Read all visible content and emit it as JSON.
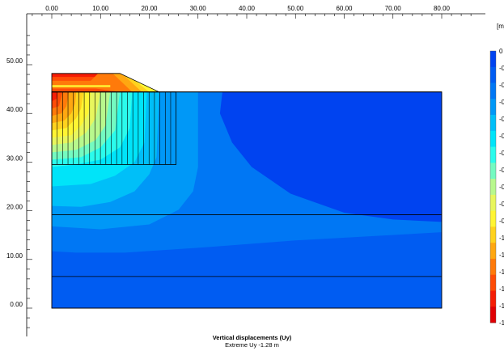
{
  "chart_data": {
    "type": "heatmap",
    "title": "Vertical displacements (Uy)",
    "subtitle": "Extreme Uy -1.28 m",
    "legend_unit": "[m]",
    "legend_position": "right",
    "xlim": [
      0,
      80
    ],
    "ylim": [
      -6,
      58
    ],
    "x_ticks": [
      0,
      10,
      20,
      30,
      40,
      50,
      60,
      70,
      80
    ],
    "x_tick_labels": [
      "0.00",
      "10.00",
      "20.00",
      "30.00",
      "40.00",
      "50.00",
      "60.00",
      "70.00",
      "80.00"
    ],
    "y_ticks": [
      0,
      10,
      20,
      30,
      40,
      50
    ],
    "y_tick_labels": [
      "0.00",
      "10.00",
      "20.00",
      "30.00",
      "40.00",
      "50.00"
    ],
    "legend_labels": [
      "0",
      "-0",
      "-0",
      "-0",
      "-0",
      "-0",
      "-0",
      "-0",
      "-0",
      "-0",
      "-0",
      "-1",
      "-1",
      "-1",
      "-1",
      "-1",
      "-1"
    ],
    "color_scale": [
      "#0043f0",
      "#005cf2",
      "#0077f4",
      "#0098f7",
      "#00bff8",
      "#00e4f9",
      "#2bfbec",
      "#74fac1",
      "#b8f88d",
      "#e8f65d",
      "#fff533",
      "#ffd21e",
      "#ffa711",
      "#ff7a0a",
      "#ff4c06",
      "#f51d05",
      "#e00004"
    ],
    "soil_layer_boundaries_y": [
      0,
      6.5,
      19.2,
      44.4
    ],
    "model_extent": {
      "x": [
        0,
        80
      ],
      "y": [
        0,
        44.4
      ]
    },
    "embankment_polygon": [
      [
        0,
        48.2
      ],
      [
        14,
        48.2
      ],
      [
        22,
        44.4
      ],
      [
        0,
        44.4
      ]
    ],
    "improved_zone": {
      "x": [
        0,
        25.5
      ],
      "y": [
        29.5,
        44.4
      ],
      "columns": 23
    },
    "contours": [
      {
        "level": 1,
        "points": [
          [
            0,
            0
          ],
          [
            80,
            0
          ],
          [
            80,
            44.4
          ],
          [
            0,
            44.4
          ]
        ]
      },
      {
        "level": 2,
        "points": [
          [
            0,
            11.7
          ],
          [
            5,
            11.4
          ],
          [
            15,
            11.4
          ],
          [
            30,
            12.4
          ],
          [
            50,
            13.9
          ],
          [
            80,
            15.6
          ],
          [
            80,
            44.4
          ],
          [
            0,
            44.4
          ]
        ]
      },
      {
        "level": 3,
        "points": [
          [
            0,
            16.8
          ],
          [
            10,
            16.2
          ],
          [
            20,
            17.2
          ],
          [
            26,
            20.2
          ],
          [
            29,
            24
          ],
          [
            30,
            29
          ],
          [
            30,
            44.4
          ],
          [
            0,
            44.4
          ]
        ]
      },
      {
        "level": 4,
        "points": [
          [
            0,
            21
          ],
          [
            6,
            20.8
          ],
          [
            12,
            21.8
          ],
          [
            17,
            24
          ],
          [
            20,
            27.5
          ],
          [
            21.5,
            31
          ],
          [
            22,
            44.4
          ],
          [
            0,
            44.4
          ]
        ]
      },
      {
        "level": 5,
        "points": [
          [
            0,
            25
          ],
          [
            8,
            25.5
          ],
          [
            13,
            27.2
          ],
          [
            17,
            30
          ],
          [
            19,
            34
          ],
          [
            19.5,
            44.4
          ],
          [
            0,
            44.4
          ]
        ]
      },
      {
        "level": 6,
        "points": [
          [
            0,
            29
          ],
          [
            5,
            29.5
          ],
          [
            10,
            30.5
          ],
          [
            14,
            33
          ],
          [
            16,
            37
          ],
          [
            16.5,
            44.4
          ],
          [
            0,
            44.4
          ]
        ]
      },
      {
        "level": 7,
        "points": [
          [
            0,
            30.5
          ],
          [
            6,
            31
          ],
          [
            10,
            33
          ],
          [
            13,
            36.5
          ],
          [
            14,
            44.4
          ],
          [
            0,
            44.4
          ]
        ]
      },
      {
        "level": 8,
        "points": [
          [
            0,
            32
          ],
          [
            5,
            32.5
          ],
          [
            9,
            34.5
          ],
          [
            11,
            37.5
          ],
          [
            12,
            44.4
          ],
          [
            0,
            44.4
          ]
        ]
      },
      {
        "level": 9,
        "points": [
          [
            0,
            33.5
          ],
          [
            4,
            34
          ],
          [
            7,
            36
          ],
          [
            9,
            39
          ],
          [
            10,
            44.4
          ],
          [
            0,
            44.4
          ]
        ]
      },
      {
        "level": 10,
        "points": [
          [
            0,
            35
          ],
          [
            4,
            35.5
          ],
          [
            6,
            37.5
          ],
          [
            7.5,
            40
          ],
          [
            8,
            44.4
          ],
          [
            0,
            44.4
          ]
        ]
      },
      {
        "level": 11,
        "points": [
          [
            0,
            36.5
          ],
          [
            3,
            37
          ],
          [
            5,
            39
          ],
          [
            6,
            41
          ],
          [
            6.5,
            44.4
          ],
          [
            0,
            44.4
          ]
        ]
      },
      {
        "level": 12,
        "points": [
          [
            0,
            38
          ],
          [
            2.5,
            38.5
          ],
          [
            4,
            40
          ],
          [
            4.8,
            42
          ],
          [
            5,
            44.4
          ],
          [
            0,
            44.4
          ]
        ]
      },
      {
        "level": 13,
        "points": [
          [
            0,
            39.5
          ],
          [
            2,
            40
          ],
          [
            3,
            41.5
          ],
          [
            3.5,
            44.4
          ],
          [
            0,
            44.4
          ]
        ]
      },
      {
        "level": 14,
        "points": [
          [
            0,
            41
          ],
          [
            1.5,
            41.5
          ],
          [
            2.2,
            44.4
          ],
          [
            0,
            44.4
          ]
        ]
      },
      {
        "level": 15,
        "points": [
          [
            0,
            42.5
          ],
          [
            1,
            43
          ],
          [
            1.2,
            44.4
          ],
          [
            0,
            44.4
          ]
        ]
      },
      {
        "level": 0,
        "points": [
          [
            35,
            44.4
          ],
          [
            34.5,
            40
          ],
          [
            37,
            34
          ],
          [
            41,
            29
          ],
          [
            49,
            23.5
          ],
          [
            60,
            19.6
          ],
          [
            70,
            18.2
          ],
          [
            80,
            17.7
          ],
          [
            80,
            44.4
          ]
        ]
      },
      {
        "level": 13,
        "points": [
          [
            0,
            44.4
          ],
          [
            22,
            44.4
          ],
          [
            14,
            48.2
          ],
          [
            0,
            48.2
          ]
        ]
      },
      {
        "level": 12,
        "points": [
          [
            12.5,
            48.2
          ],
          [
            14,
            48.2
          ],
          [
            22,
            44.4
          ],
          [
            16.5,
            44.4
          ]
        ]
      },
      {
        "level": 11,
        "points": [
          [
            14.8,
            47.8
          ],
          [
            22,
            44.4
          ],
          [
            18.5,
            44.4
          ]
        ]
      },
      {
        "level": 10,
        "points": [
          [
            16.8,
            46.9
          ],
          [
            22,
            44.4
          ],
          [
            20,
            44.4
          ]
        ]
      },
      {
        "level": 14,
        "points": [
          [
            0,
            45.1
          ],
          [
            9,
            45.1
          ],
          [
            14,
            44.4
          ],
          [
            0,
            44.4
          ]
        ]
      },
      {
        "level": 14,
        "points": [
          [
            0,
            46.7
          ],
          [
            8,
            46.7
          ],
          [
            9.5,
            48.2
          ],
          [
            0,
            48.2
          ]
        ]
      },
      {
        "level": 15,
        "points": [
          [
            0,
            47.5
          ],
          [
            8.8,
            47.5
          ],
          [
            9.5,
            48.2
          ],
          [
            0,
            48.2
          ]
        ]
      }
    ],
    "yellow_band_y": [
      45.4,
      45.8
    ]
  }
}
